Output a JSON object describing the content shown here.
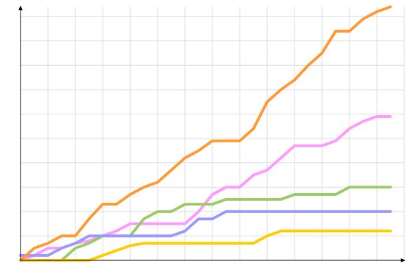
{
  "chart_data": {
    "type": "line",
    "x": [
      0,
      1,
      2,
      3,
      4,
      5,
      6,
      7,
      8,
      9,
      10,
      11,
      12,
      13,
      14,
      15,
      16,
      17,
      18,
      19,
      20,
      21,
      22,
      23,
      24,
      25,
      26,
      27
    ],
    "xlim": [
      0,
      28
    ],
    "xticks": [
      0,
      2,
      4,
      6,
      8,
      10,
      12,
      14,
      16,
      18,
      20,
      22,
      24,
      26,
      28
    ],
    "ylim": [
      0,
      104
    ],
    "yticks": [
      10,
      20,
      30,
      40,
      50,
      60,
      70,
      80,
      90,
      100
    ],
    "grid": true,
    "series": [
      {
        "color": "#ff99ff",
        "values": [
          0,
          2,
          5,
          5,
          7,
          8,
          10,
          12,
          15,
          15,
          15,
          15,
          15,
          20,
          27,
          30,
          30,
          35,
          37,
          42,
          47,
          47,
          47,
          49,
          54,
          57,
          59,
          59
        ]
      },
      {
        "color": "#99cc66",
        "values": [
          0,
          0,
          0,
          0,
          5,
          7,
          10,
          10,
          10,
          17,
          20,
          20,
          23,
          23,
          23,
          25,
          25,
          25,
          25,
          25,
          27,
          27,
          27,
          27,
          30,
          30,
          30,
          30
        ]
      },
      {
        "color": "#9999ff",
        "values": [
          2,
          2,
          2,
          5,
          7,
          10,
          10,
          10,
          10,
          10,
          10,
          10,
          12,
          17,
          17,
          20,
          20,
          20,
          20,
          20,
          20,
          20,
          20,
          20,
          20,
          20,
          20,
          20
        ]
      },
      {
        "color": "#ffcc00",
        "values": [
          0,
          0,
          0,
          0,
          0,
          0,
          2,
          4,
          6,
          7,
          7,
          7,
          7,
          7,
          7,
          7,
          7,
          7,
          10,
          12,
          12,
          12,
          12,
          12,
          12,
          12,
          12,
          12
        ]
      },
      {
        "color": "#ff9933",
        "values": [
          0,
          5,
          7,
          10,
          10,
          17,
          23,
          23,
          27,
          30,
          32,
          37,
          42,
          45,
          49,
          49,
          49,
          54,
          65,
          70,
          74,
          80,
          85,
          94,
          94,
          99,
          102,
          104
        ]
      }
    ]
  }
}
